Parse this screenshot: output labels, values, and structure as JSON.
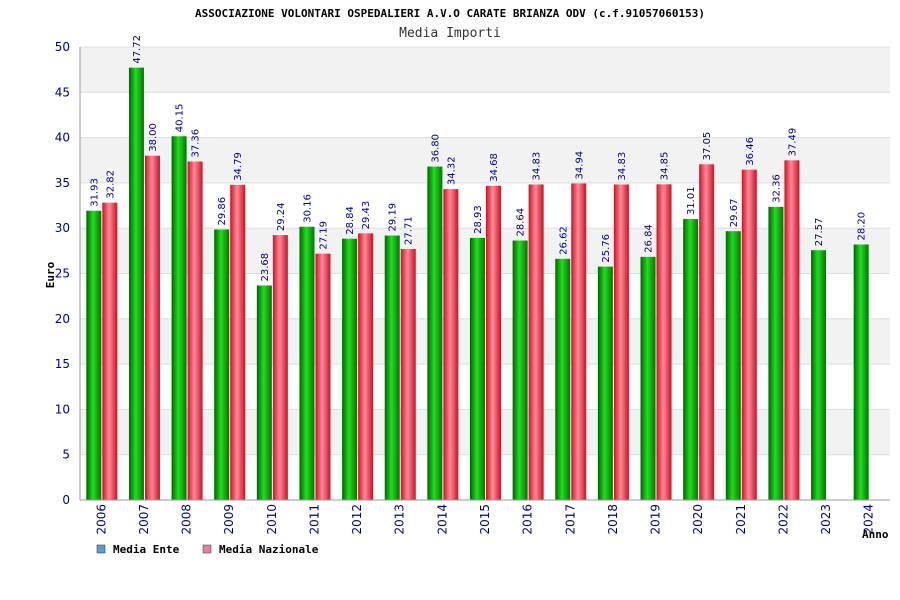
{
  "chart_data": {
    "type": "bar",
    "title": "ASSOCIAZIONE VOLONTARI OSPEDALIERI A.V.O CARATE BRIANZA ODV (c.f.91057060153)",
    "subtitle": "Media Importi",
    "xlabel": "Anno",
    "ylabel": "Euro",
    "ylim": [
      0,
      50
    ],
    "yticks": [
      0,
      5,
      10,
      15,
      20,
      25,
      30,
      35,
      40,
      45,
      50
    ],
    "grid": true,
    "legend_position": "bottom-left",
    "categories": [
      "2006",
      "2007",
      "2008",
      "2009",
      "2010",
      "2011",
      "2012",
      "2013",
      "2014",
      "2015",
      "2016",
      "2017",
      "2018",
      "2019",
      "2020",
      "2021",
      "2022",
      "2023",
      "2024"
    ],
    "series": [
      {
        "name": "Media Ente",
        "legend_color": "#5b9bd5",
        "bar_color": "#00b000",
        "values": [
          31.93,
          47.72,
          40.15,
          29.86,
          23.68,
          30.16,
          28.84,
          29.19,
          36.8,
          28.93,
          28.64,
          26.62,
          25.76,
          26.84,
          31.01,
          29.67,
          32.36,
          27.57,
          28.2
        ],
        "labels": [
          "31.93",
          "47.72",
          "40.15",
          "29.86",
          "23.68",
          "30.16",
          "28.84",
          "29.19",
          "36.80",
          "28.93",
          "28.64",
          "26.62",
          "25.76",
          "26.84",
          "31.01",
          "29.67",
          "32.36",
          "27.57",
          "28.20"
        ]
      },
      {
        "name": "Media Nazionale",
        "legend_color": "#e07fa8",
        "bar_color": "#e02030",
        "values": [
          32.82,
          38.0,
          37.36,
          34.79,
          29.24,
          27.19,
          29.43,
          27.71,
          34.32,
          34.68,
          34.83,
          34.94,
          34.83,
          34.85,
          37.05,
          36.46,
          37.49,
          null,
          null
        ],
        "labels": [
          "32.82",
          "38.00",
          "37.36",
          "34.79",
          "29.24",
          "27.19",
          "29.43",
          "27.71",
          "34.32",
          "34.68",
          "34.83",
          "34.94",
          "34.83",
          "34.85",
          "37.05",
          "36.46",
          "37.49",
          null,
          null
        ]
      }
    ]
  }
}
